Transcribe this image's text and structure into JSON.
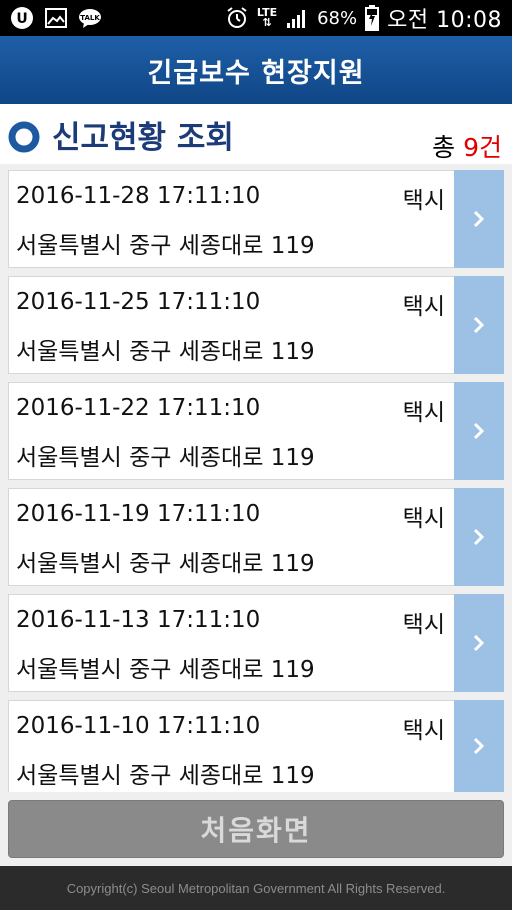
{
  "status_bar": {
    "network": "LTE",
    "battery": "68%",
    "time": "오전 10:08",
    "left_icons": [
      "u-plus-icon",
      "gallery-icon",
      "talk-icon"
    ]
  },
  "header": {
    "title": "긴급보수 현장지원"
  },
  "section": {
    "title": "신고현황 조회",
    "count_prefix": "총 ",
    "count_value": "9건"
  },
  "reports": [
    {
      "datetime": "2016-11-28 17:11:10",
      "type": "택시",
      "address": "서울특별시 중구 세종대로 119"
    },
    {
      "datetime": "2016-11-25 17:11:10",
      "type": "택시",
      "address": "서울특별시 중구 세종대로 119"
    },
    {
      "datetime": "2016-11-22 17:11:10",
      "type": "택시",
      "address": "서울특별시 중구 세종대로 119"
    },
    {
      "datetime": "2016-11-19 17:11:10",
      "type": "택시",
      "address": "서울특별시 중구 세종대로 119"
    },
    {
      "datetime": "2016-11-13 17:11:10",
      "type": "택시",
      "address": "서울특별시 중구 세종대로 119"
    },
    {
      "datetime": "2016-11-10 17:11:10",
      "type": "택시",
      "address": "서울특별시 중구 세종대로 119"
    }
  ],
  "home_button": {
    "label": "처음화면"
  },
  "footer": {
    "copyright": "Copyright(c) Seoul Metropolitan Government All Rights Reserved."
  },
  "colors": {
    "header_blue": "#1f5fa8",
    "accent_red": "#e00000",
    "row_button": "#9dc0e5"
  }
}
